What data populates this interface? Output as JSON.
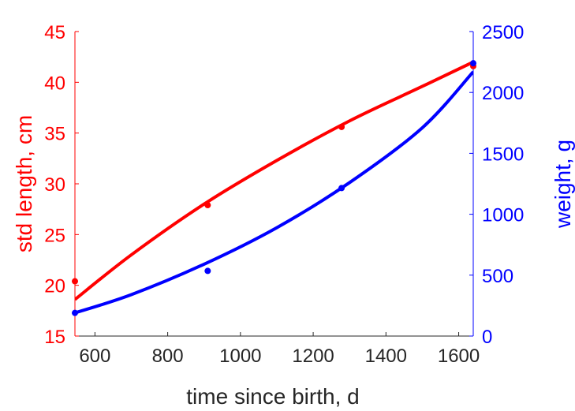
{
  "chart_data": {
    "type": "line",
    "title": "",
    "xlabel": "time since birth, d",
    "ylabel_left": "std length, cm",
    "ylabel_right": "weight, g",
    "xlim": [
      545,
      1640
    ],
    "xticks": [
      600,
      800,
      1000,
      1200,
      1400,
      1600
    ],
    "ylim_left": [
      15,
      45
    ],
    "yticks_left": [
      15,
      20,
      25,
      30,
      35,
      40,
      45
    ],
    "ylim_right": [
      0,
      2500
    ],
    "yticks_right": [
      0,
      500,
      1000,
      1500,
      2000,
      2500
    ],
    "grid": false,
    "legend": "none",
    "colors": {
      "left": "#ff0000",
      "right": "#0000ff",
      "axis": "#262626"
    },
    "series": [
      {
        "axis": "left",
        "color": "#ff0000",
        "points": {
          "x": [
            545,
            910,
            1278,
            1640
          ],
          "y": [
            20.4,
            27.9,
            35.6,
            41.6
          ]
        },
        "curve": {
          "x": [
            545,
            700,
            900,
            1100,
            1300,
            1500,
            1640
          ],
          "y": [
            18.6,
            23.0,
            28.0,
            32.3,
            36.2,
            39.6,
            42.0
          ]
        }
      },
      {
        "axis": "right",
        "color": "#0000ff",
        "points": {
          "x": [
            545,
            910,
            1278,
            1640
          ],
          "y": [
            190,
            535,
            1215,
            2240
          ]
        },
        "curve": {
          "x": [
            545,
            700,
            900,
            1100,
            1300,
            1500,
            1640
          ],
          "y": [
            190,
            340,
            590,
            890,
            1260,
            1710,
            2170
          ]
        }
      }
    ]
  }
}
